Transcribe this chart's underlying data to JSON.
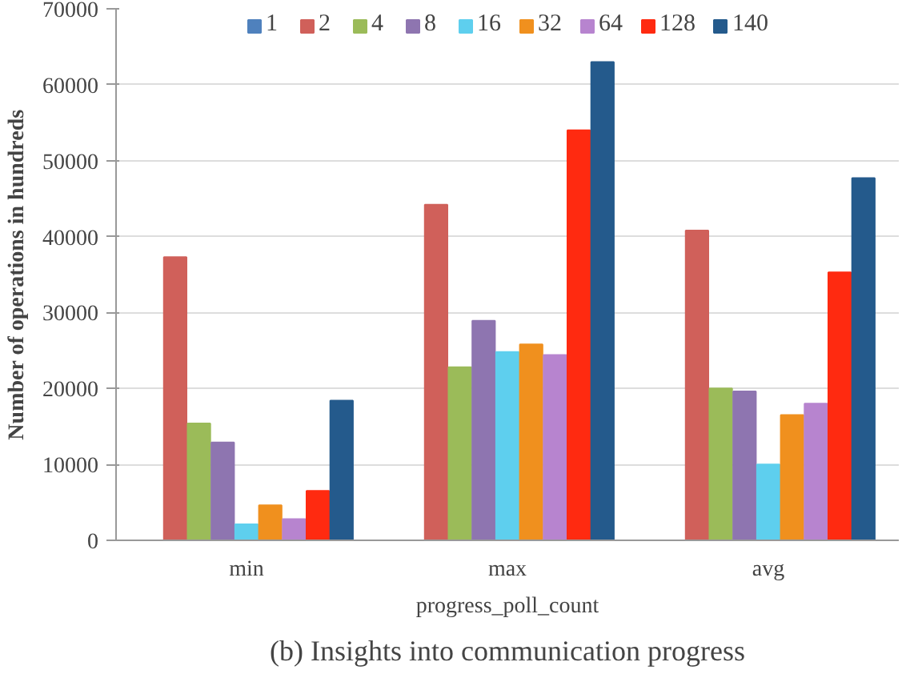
{
  "chart_data": {
    "type": "bar",
    "categories": [
      "min",
      "max",
      "avg"
    ],
    "xlabel": "progress_poll_count",
    "ylabel": "Number of operations in hundreds",
    "annotations": [
      "(b) Insights into communication progress"
    ],
    "series": [
      {
        "name": "1",
        "color": "#4f81bd",
        "values": [
          0,
          0,
          0
        ]
      },
      {
        "name": "2",
        "color": "#d0605a",
        "values": [
          37300,
          44200,
          40800
        ]
      },
      {
        "name": "4",
        "color": "#9bbb59",
        "values": [
          15400,
          22800,
          20000
        ]
      },
      {
        "name": "8",
        "color": "#8e75b0",
        "values": [
          12900,
          28900,
          19600
        ]
      },
      {
        "name": "16",
        "color": "#5ecfee",
        "values": [
          2100,
          24800,
          10000
        ]
      },
      {
        "name": "32",
        "color": "#f0901e",
        "values": [
          4600,
          25800,
          16500
        ]
      },
      {
        "name": "64",
        "color": "#b784cf",
        "values": [
          2800,
          24400,
          18000
        ]
      },
      {
        "name": "128",
        "color": "#ff2a10",
        "values": [
          6500,
          54000,
          35300
        ]
      },
      {
        "name": "140",
        "color": "#245a8c",
        "values": [
          18400,
          63000,
          47700
        ]
      }
    ],
    "ylim": [
      0,
      70000
    ],
    "yticks": [
      0,
      10000,
      20000,
      30000,
      40000,
      50000,
      60000,
      70000
    ],
    "grid": "y",
    "legend": "top"
  }
}
